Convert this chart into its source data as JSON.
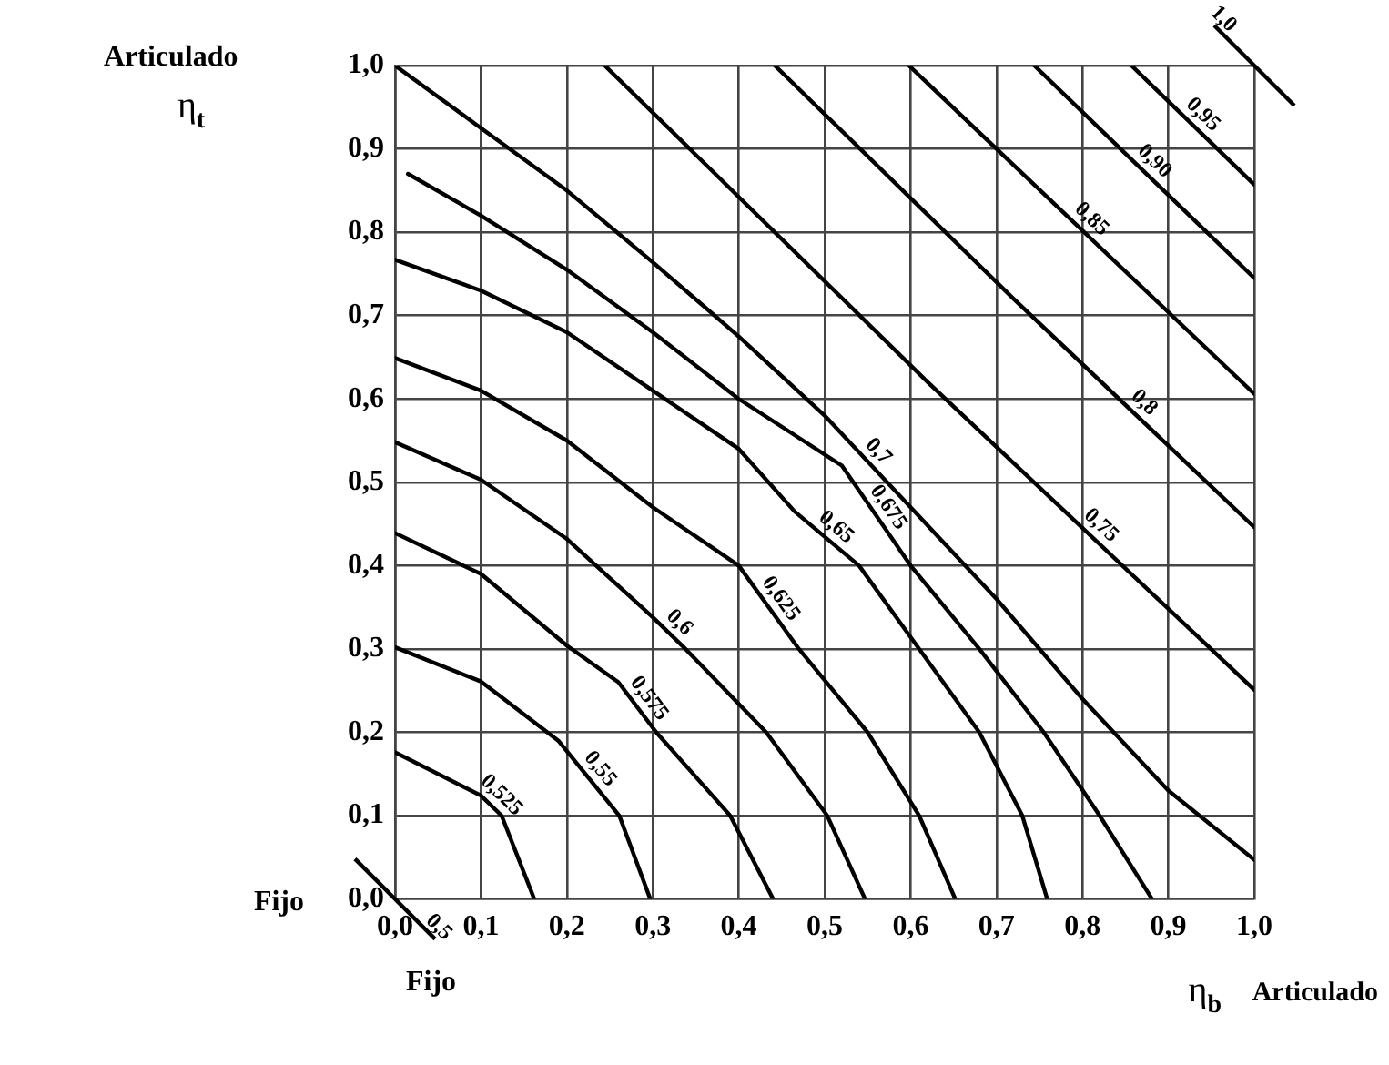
{
  "chart_data": {
    "type": "line",
    "xlabel": "η$_{b}$",
    "ylabel": "η$_{t}$",
    "xlim": [
      0,
      1
    ],
    "ylim": [
      0,
      1
    ],
    "xticks": [
      {
        "value": 0,
        "label": "0,0"
      },
      {
        "value": 0.1,
        "label": "0,1"
      },
      {
        "value": 0.2,
        "label": "0,2"
      },
      {
        "value": 0.3,
        "label": "0,3"
      },
      {
        "value": 0.4,
        "label": "0,4"
      },
      {
        "value": 0.5,
        "label": "0,5"
      },
      {
        "value": 0.6,
        "label": "0,6"
      },
      {
        "value": 0.7,
        "label": "0,7"
      },
      {
        "value": 0.8,
        "label": "0,8"
      },
      {
        "value": 0.9,
        "label": "0,9"
      },
      {
        "value": 1,
        "label": "1,0"
      }
    ],
    "yticks": [
      {
        "value": 0,
        "label": "0,0"
      },
      {
        "value": 0.1,
        "label": "0,1"
      },
      {
        "value": 0.2,
        "label": "0,2"
      },
      {
        "value": 0.3,
        "label": "0,3"
      },
      {
        "value": 0.4,
        "label": "0,4"
      },
      {
        "value": 0.5,
        "label": "0,5"
      },
      {
        "value": 0.6,
        "label": "0,6"
      },
      {
        "value": 0.7,
        "label": "0,7"
      },
      {
        "value": 0.8,
        "label": "0,8"
      },
      {
        "value": 0.9,
        "label": "0,9"
      },
      {
        "value": 1,
        "label": "1,0"
      }
    ],
    "grid": true,
    "legend": false,
    "marker": "none",
    "line_style": "solid",
    "series": [
      {
        "name": "0,525",
        "color": "#000000",
        "x": [
          0,
          0.1,
          0.124,
          0.162
        ],
        "values": [
          0.176,
          0.124,
          0.1,
          0
        ]
      },
      {
        "name": "0,55",
        "color": "#000000",
        "x": [
          0,
          0.1,
          0.19,
          0.261,
          0.297
        ],
        "values": [
          0.302,
          0.261,
          0.19,
          0.1,
          0
        ]
      },
      {
        "name": "0,575",
        "color": "#000000",
        "x": [
          0,
          0.1,
          0.2,
          0.26,
          0.304,
          0.39,
          0.44
        ],
        "values": [
          0.439,
          0.39,
          0.304,
          0.26,
          0.2,
          0.1,
          0
        ]
      },
      {
        "name": "0,6",
        "color": "#000000",
        "x": [
          0,
          0.1,
          0.2,
          0.3,
          0.338,
          0.432,
          0.503,
          0.547
        ],
        "values": [
          0.548,
          0.503,
          0.432,
          0.338,
          0.3,
          0.2,
          0.1,
          0
        ]
      },
      {
        "name": "0,625",
        "color": "#000000",
        "x": [
          0,
          0.1,
          0.2,
          0.3,
          0.4,
          0.47,
          0.55,
          0.61,
          0.652
        ],
        "values": [
          0.649,
          0.61,
          0.55,
          0.47,
          0.4,
          0.3,
          0.2,
          0.1,
          0
        ]
      },
      {
        "name": "0,65",
        "color": "#000000",
        "x": [
          0,
          0.1,
          0.2,
          0.3,
          0.4,
          0.465,
          0.54,
          0.61,
          0.68,
          0.73,
          0.759
        ],
        "values": [
          0.767,
          0.73,
          0.68,
          0.61,
          0.54,
          0.465,
          0.4,
          0.3,
          0.2,
          0.1,
          0
        ]
      },
      {
        "name": "0,675",
        "color": "#000000",
        "x": [
          0.015,
          0.1,
          0.2,
          0.3,
          0.4,
          0.52,
          0.6,
          0.68,
          0.755,
          0.82,
          0.881
        ],
        "values": [
          0.87,
          0.82,
          0.755,
          0.68,
          0.6,
          0.52,
          0.4,
          0.3,
          0.2,
          0.1,
          0
        ]
      },
      {
        "name": "0,7",
        "color": "#000000",
        "x": [
          0,
          0.1,
          0.2,
          0.3,
          0.4,
          0.5,
          0.6,
          0.7,
          0.8,
          0.9,
          1
        ],
        "values": [
          1,
          0.925,
          0.85,
          0.764,
          0.675,
          0.58,
          0.47,
          0.36,
          0.24,
          0.13,
          0.047
        ]
      },
      {
        "name": "0,75",
        "color": "#000000",
        "x": [
          0.244,
          0.62,
          1
        ],
        "values": [
          1,
          0.62,
          0.251
        ]
      },
      {
        "name": "0,8",
        "color": "#000000",
        "x": [
          0.442,
          0.72,
          1
        ],
        "values": [
          1,
          0.72,
          0.446
        ]
      },
      {
        "name": "0,85",
        "color": "#000000",
        "x": [
          0.598,
          1
        ],
        "values": [
          1,
          0.606
        ]
      },
      {
        "name": "0,90",
        "color": "#000000",
        "x": [
          0.744,
          1
        ],
        "values": [
          1,
          0.745
        ]
      },
      {
        "name": "0,95",
        "color": "#000000",
        "x": [
          0.857,
          1
        ],
        "values": [
          1,
          0.857
        ]
      }
    ],
    "annotations": [
      "Articulado",
      "Fijo",
      "Fijo",
      "Articulado",
      {
        "text": "1,0",
        "x": 1,
        "y": 1
      },
      {
        "text": "0,5",
        "x": 0,
        "y": 0
      }
    ]
  }
}
